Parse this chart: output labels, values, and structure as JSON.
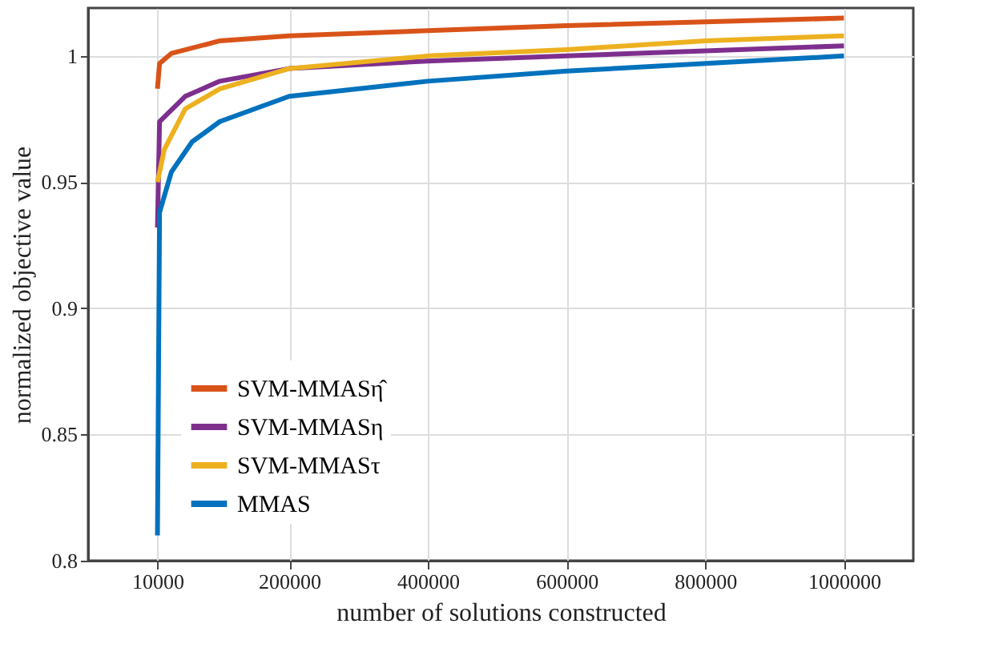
{
  "chart_data": {
    "type": "line",
    "xlabel": "number of solutions constructed",
    "ylabel": "normalized objective value",
    "xlim": [
      -90000,
      1100000
    ],
    "xticks": [
      10000,
      200000,
      400000,
      600000,
      800000,
      1000000
    ],
    "ylim": [
      0.8,
      1.019
    ],
    "yticks": [
      0.8,
      0.85,
      0.9,
      0.95,
      1
    ],
    "grid": true,
    "legend": "bottom left",
    "marker": "none",
    "line_style": "solid",
    "series": [
      {
        "name": "SVM-MMASη̂",
        "color": "#d95319",
        "x": [
          10000,
          13000,
          30000,
          100000,
          200000,
          400000,
          600000,
          1000000
        ],
        "values": [
          0.987,
          0.997,
          1.001,
          1.006,
          1.008,
          1.01,
          1.012,
          1.015
        ]
      },
      {
        "name": "SVM-MMASη",
        "color": "#7e2f8e",
        "x": [
          10000,
          13000,
          50000,
          100000,
          200000,
          400000,
          600000,
          800000,
          1000000
        ],
        "values": [
          0.932,
          0.974,
          0.984,
          0.99,
          0.995,
          0.998,
          1.0,
          1.002,
          1.004
        ]
      },
      {
        "name": "SVM-MMASτ",
        "color": "#edb120",
        "x": [
          10000,
          20000,
          50000,
          100000,
          200000,
          400000,
          600000,
          800000,
          1000000
        ],
        "values": [
          0.95,
          0.963,
          0.979,
          0.987,
          0.995,
          1.0,
          1.0025,
          1.006,
          1.008
        ]
      },
      {
        "name": "MMAS",
        "color": "#0072bd",
        "x": [
          10000,
          13000,
          30000,
          60000,
          100000,
          200000,
          400000,
          600000,
          800000,
          1000000
        ],
        "values": [
          0.81,
          0.938,
          0.954,
          0.966,
          0.974,
          0.984,
          0.99,
          0.994,
          0.997,
          1.0
        ]
      }
    ]
  }
}
